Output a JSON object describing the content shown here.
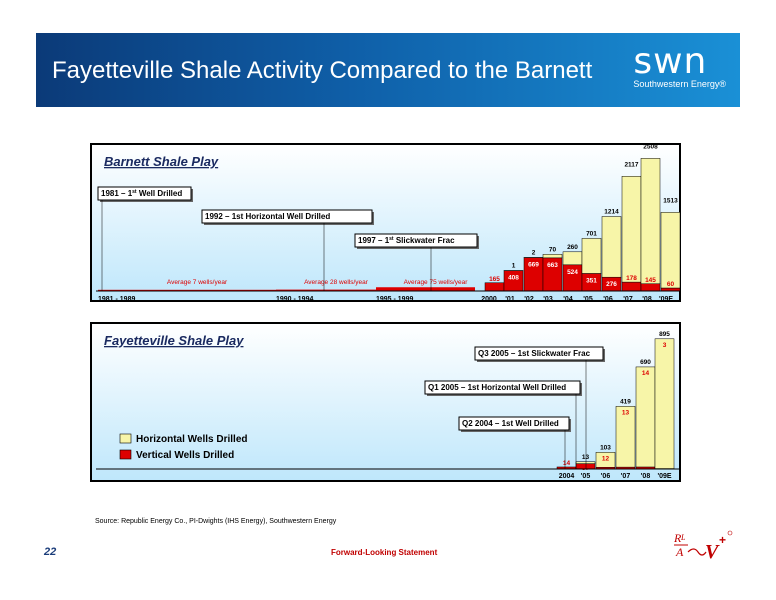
{
  "header": {
    "title": "Fayetteville Shale Activity Compared to the Barnett",
    "logo_mark": "swn",
    "logo_sub": "Southwestern Energy®"
  },
  "colors": {
    "horizontal": "#f7f5a8",
    "vertical": "#dd0000",
    "vertical_label": "#ffffff",
    "vertical_outside_label": "#dd0000",
    "red_text": "#dd0000"
  },
  "chart_data": [
    {
      "type": "bar",
      "title": "Barnett Shale Play",
      "stacked": true,
      "categories": [
        "1981 - 1989",
        "1990 - 1994",
        "1995 - 1999",
        "2000",
        "'01",
        "'02",
        "'03",
        "'04",
        "'05",
        "'06",
        "'07",
        "'08",
        "'09E"
      ],
      "series": [
        {
          "name": "Vertical Wells Drilled",
          "values": [
            7,
            28,
            75,
            165,
            408,
            669,
            663,
            524,
            351,
            276,
            178,
            145,
            60
          ]
        },
        {
          "name": "Horizontal Wells Drilled",
          "values": [
            0,
            0,
            0,
            0,
            1,
            2,
            70,
            260,
            701,
            1214,
            2117,
            2508,
            1513
          ]
        }
      ],
      "period_labels": [
        "Average 7 wells/year",
        "Average 28 wells/year",
        "Average 75 wells/year"
      ],
      "annotations": [
        {
          "pre": "1981 – 1",
          "sup": "st",
          "post": " Well Drilled"
        },
        {
          "pre": "1992 – 1st Horizontal Well Drilled",
          "sup": "",
          "post": ""
        },
        {
          "pre": "1997 – 1",
          "sup": "st",
          "post": " Slickwater Frac"
        }
      ]
    },
    {
      "type": "bar",
      "title": "Fayetteville Shale Play",
      "stacked": true,
      "categories": [
        "2004",
        "'05",
        "'06",
        "'07",
        "'08",
        "'09E"
      ],
      "series": [
        {
          "name": "Vertical Wells Drilled",
          "values": [
            14,
            37,
            12,
            13,
            14,
            3
          ]
        },
        {
          "name": "Horizontal Wells Drilled",
          "values": [
            0,
            13,
            103,
            419,
            690,
            895
          ]
        }
      ],
      "annotations": [
        "Q3 2005 – 1st Slickwater Frac",
        "Q1 2005 – 1st Horizontal Well Drilled",
        "Q2 2004 – 1st Well Drilled"
      ],
      "legend": [
        "Horizontal Wells Drilled",
        "Vertical Wells Drilled"
      ]
    }
  ],
  "footer": {
    "source": "Source: Republic Energy Co., PI-Dwights (IHS Energy), Southwestern Energy",
    "page_number": "22",
    "forward_looking": "Forward-Looking Statement"
  }
}
